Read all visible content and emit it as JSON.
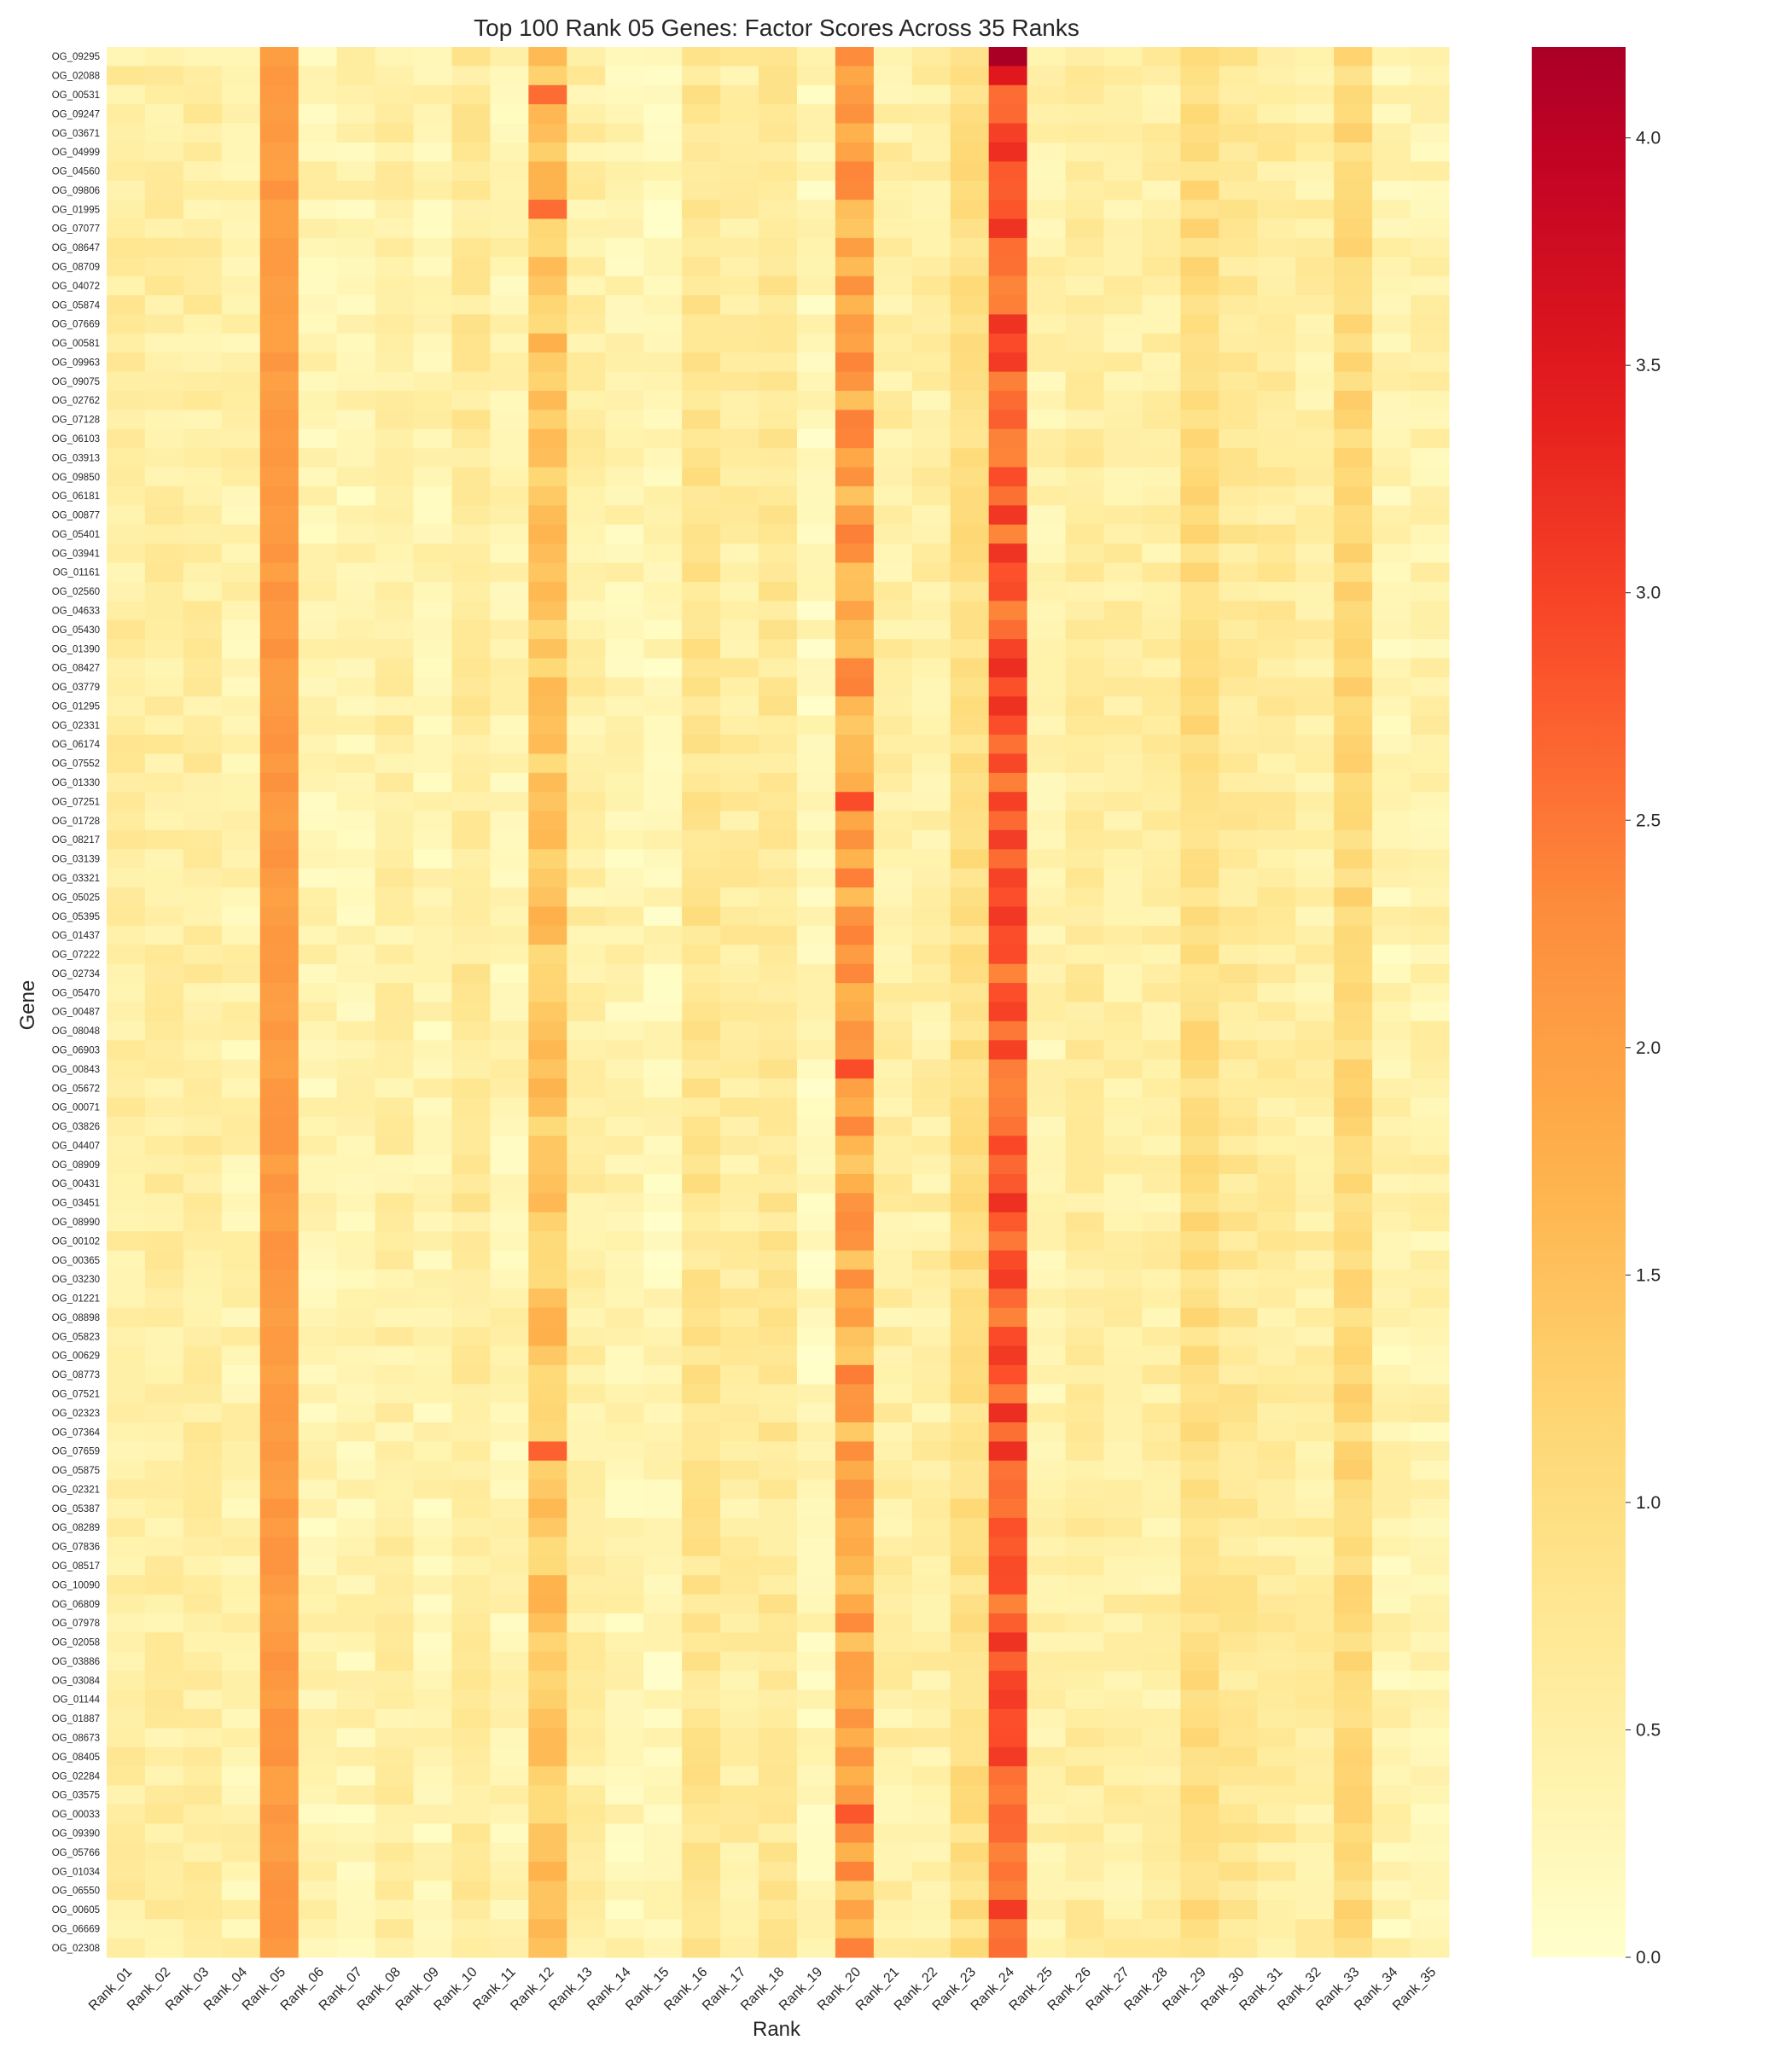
{
  "chart_data": {
    "type": "heatmap",
    "title": "Top 100 Rank 05 Genes: Factor Scores Across 35 Ranks",
    "xlabel": "Rank",
    "ylabel": "Gene",
    "colormap": "YlOrRd",
    "colorbar": {
      "range": [
        0.0,
        4.2
      ],
      "ticks": [
        "0.0",
        "0.5",
        "1.0",
        "1.5",
        "2.0",
        "2.5",
        "3.0",
        "3.5",
        "4.0"
      ]
    },
    "columns": [
      "Rank_01",
      "Rank_02",
      "Rank_03",
      "Rank_04",
      "Rank_05",
      "Rank_06",
      "Rank_07",
      "Rank_08",
      "Rank_09",
      "Rank_10",
      "Rank_11",
      "Rank_12",
      "Rank_13",
      "Rank_14",
      "Rank_15",
      "Rank_16",
      "Rank_17",
      "Rank_18",
      "Rank_19",
      "Rank_20",
      "Rank_21",
      "Rank_22",
      "Rank_23",
      "Rank_24",
      "Rank_25",
      "Rank_26",
      "Rank_27",
      "Rank_28",
      "Rank_29",
      "Rank_30",
      "Rank_31",
      "Rank_32",
      "Rank_33",
      "Rank_34",
      "Rank_35"
    ],
    "rows": [
      "OG_09295",
      "OG_02088",
      "OG_00531",
      "OG_09247",
      "OG_03671",
      "OG_04999",
      "OG_04560",
      "OG_09806",
      "OG_01995",
      "OG_07077",
      "OG_08647",
      "OG_08709",
      "OG_04072",
      "OG_05874",
      "OG_07669",
      "OG_00581",
      "OG_09963",
      "OG_09075",
      "OG_02762",
      "OG_07128",
      "OG_06103",
      "OG_03913",
      "OG_09850",
      "OG_06181",
      "OG_00877",
      "OG_05401",
      "OG_03941",
      "OG_01161",
      "OG_02560",
      "OG_04633",
      "OG_05430",
      "OG_01390",
      "OG_08427",
      "OG_03779",
      "OG_01295",
      "OG_02331",
      "OG_06174",
      "OG_07552",
      "OG_01330",
      "OG_07251",
      "OG_01728",
      "OG_08217",
      "OG_03139",
      "OG_03321",
      "OG_05025",
      "OG_05395",
      "OG_01437",
      "OG_07222",
      "OG_02734",
      "OG_05470",
      "OG_00487",
      "OG_08048",
      "OG_06903",
      "OG_00843",
      "OG_05672",
      "OG_00071",
      "OG_03826",
      "OG_04407",
      "OG_08909",
      "OG_00431",
      "OG_03451",
      "OG_08990",
      "OG_00102",
      "OG_00365",
      "OG_03230",
      "OG_01221",
      "OG_08898",
      "OG_05823",
      "OG_00629",
      "OG_08773",
      "OG_07521",
      "OG_02323",
      "OG_07364",
      "OG_07659",
      "OG_05875",
      "OG_02321",
      "OG_05387",
      "OG_08289",
      "OG_07836",
      "OG_08517",
      "OG_10090",
      "OG_06809",
      "OG_07978",
      "OG_02058",
      "OG_03886",
      "OG_03084",
      "OG_01144",
      "OG_01887",
      "OG_08673",
      "OG_08405",
      "OG_02284",
      "OG_03575",
      "OG_00033",
      "OG_09390",
      "OG_05766",
      "OG_01034",
      "OG_06550",
      "OG_00605",
      "OG_06669",
      "OG_02308"
    ],
    "column_means": [
      0.55,
      0.55,
      0.55,
      0.4,
      2.1,
      0.35,
      0.35,
      0.5,
      0.35,
      0.65,
      0.35,
      1.4,
      0.5,
      0.35,
      0.25,
      0.8,
      0.55,
      0.7,
      0.25,
      1.9,
      0.5,
      0.5,
      0.95,
      2.8,
      0.4,
      0.6,
      0.5,
      0.5,
      1.0,
      0.7,
      0.6,
      0.5,
      1.1,
      0.35,
      0.4
    ],
    "notable_cells": [
      {
        "row": "OG_09295",
        "column": "Rank_24",
        "value": 4.2
      },
      {
        "row": "OG_02088",
        "column": "Rank_24",
        "value": 3.5
      },
      {
        "row": "OG_00531",
        "column": "Rank_12",
        "value": 2.6
      },
      {
        "row": "OG_01995",
        "column": "Rank_12",
        "value": 2.6
      },
      {
        "row": "OG_07659",
        "column": "Rank_12",
        "value": 2.7
      },
      {
        "row": "OG_07251",
        "column": "Rank_20",
        "value": 2.9
      },
      {
        "row": "OG_00843",
        "column": "Rank_20",
        "value": 2.9
      },
      {
        "row": "OG_00033",
        "column": "Rank_20",
        "value": 2.8
      }
    ]
  }
}
